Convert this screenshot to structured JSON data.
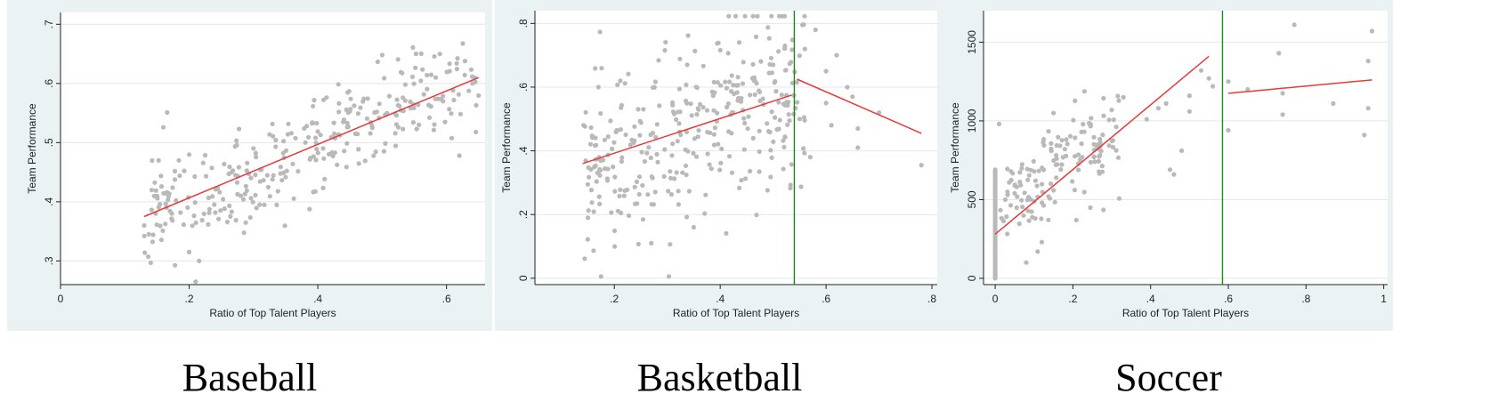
{
  "colors": {
    "panel_bg": "#eaf2f3",
    "plot_bg": "#ffffff",
    "grid": "#e1e8ea",
    "points": "#b9b9b9",
    "fit_line": "#e8393a",
    "threshold_line": "#1a8a1a"
  },
  "chart_data": [
    {
      "type": "scatter",
      "caption": "Baseball",
      "xlabel": "Ratio of Top Talent Players",
      "ylabel": "Team Performance",
      "xlim": [
        0,
        0.66
      ],
      "ylim": [
        0.26,
        0.72
      ],
      "xticks": [
        0,
        0.2,
        0.4,
        0.6
      ],
      "xtick_labels": [
        "0",
        ".2",
        ".4",
        ".6"
      ],
      "yticks": [
        0.3,
        0.4,
        0.5,
        0.6,
        0.7
      ],
      "ytick_labels": [
        ".3",
        ".4",
        ".5",
        ".6",
        ".7"
      ],
      "grid": true,
      "fit_lines": [
        {
          "x": [
            0.13,
            0.65
          ],
          "y": [
            0.375,
            0.61
          ]
        }
      ],
      "vlines": [],
      "points_summary": {
        "count": 320,
        "x_range": [
          0.13,
          0.65
        ],
        "slope": 0.452,
        "intercept": 0.316,
        "spread": 0.045,
        "seed": 11
      },
      "extra_points": [
        [
          0.21,
          0.265
        ],
        [
          0.2,
          0.315
        ],
        [
          0.13,
          0.36
        ],
        [
          0.5,
          0.648
        ],
        [
          0.62,
          0.478
        ]
      ]
    },
    {
      "type": "scatter",
      "caption": "Basketball",
      "xlabel": "Ratio of Top Talent Players",
      "ylabel": "Team Performance",
      "xlim": [
        0.05,
        0.81
      ],
      "ylim": [
        -0.02,
        0.84
      ],
      "xticks": [
        0.2,
        0.4,
        0.6,
        0.8
      ],
      "xtick_labels": [
        ".2",
        ".4",
        ".6",
        ".8"
      ],
      "yticks": [
        0,
        0.2,
        0.4,
        0.6,
        0.8
      ],
      "ytick_labels": [
        "0",
        ".2",
        ".4",
        ".6",
        ".8"
      ],
      "grid": true,
      "fit_lines": [
        {
          "x": [
            0.14,
            0.535
          ],
          "y": [
            0.36,
            0.575
          ]
        },
        {
          "x": [
            0.545,
            0.78
          ],
          "y": [
            0.625,
            0.455
          ]
        }
      ],
      "vlines": [
        0.54
      ],
      "points_summary": {
        "count": 340,
        "x_range": [
          0.14,
          0.56
        ],
        "slope": 0.6,
        "intercept": 0.27,
        "spread": 0.14,
        "seed": 23
      },
      "extra_points": [
        [
          0.27,
          0.11
        ],
        [
          0.35,
          0.16
        ],
        [
          0.78,
          0.355
        ],
        [
          0.66,
          0.41
        ],
        [
          0.6,
          0.65
        ],
        [
          0.64,
          0.6
        ],
        [
          0.58,
          0.78
        ],
        [
          0.7,
          0.52
        ],
        [
          0.66,
          0.47
        ],
        [
          0.56,
          0.72
        ],
        [
          0.62,
          0.7
        ],
        [
          0.6,
          0.55
        ],
        [
          0.57,
          0.38
        ],
        [
          0.55,
          0.5
        ],
        [
          0.65,
          0.57
        ],
        [
          0.61,
          0.48
        ],
        [
          0.15,
          0.19
        ],
        [
          0.17,
          0.6
        ]
      ]
    },
    {
      "type": "scatter",
      "caption": "Soccer",
      "xlabel": "Ratio of Top Talent Players",
      "ylabel": "Team Performance",
      "xlim": [
        -0.03,
        1.01
      ],
      "ylim": [
        -40,
        1700
      ],
      "xticks": [
        0,
        0.2,
        0.4,
        0.6,
        0.8,
        1
      ],
      "xtick_labels": [
        "0",
        ".2",
        ".4",
        ".6",
        ".8",
        "1"
      ],
      "yticks": [
        0,
        500,
        1000,
        1500
      ],
      "ytick_labels": [
        "0",
        "500",
        "1000",
        "1500"
      ],
      "grid": true,
      "fit_lines": [
        {
          "x": [
            0,
            0.55
          ],
          "y": [
            280,
            1410
          ]
        },
        {
          "x": [
            0.6,
            0.97
          ],
          "y": [
            1175,
            1260
          ]
        }
      ],
      "vlines": [
        0.585
      ],
      "points_summary": {
        "count": 150,
        "x_range": [
          0.01,
          0.32
        ],
        "slope": 1500,
        "intercept": 430,
        "spread": 170,
        "seed": 37
      },
      "zero_column": {
        "x": 0,
        "y_range": [
          0,
          690
        ],
        "count": 60
      },
      "extra_points": [
        [
          0.77,
          1610
        ],
        [
          0.97,
          1570
        ],
        [
          0.73,
          1430
        ],
        [
          0.96,
          1380
        ],
        [
          0.74,
          1175
        ],
        [
          0.65,
          1200
        ],
        [
          0.6,
          1250
        ],
        [
          0.6,
          940
        ],
        [
          0.74,
          1040
        ],
        [
          0.96,
          1080
        ],
        [
          0.87,
          1110
        ],
        [
          0.95,
          910
        ],
        [
          0.55,
          1270
        ],
        [
          0.53,
          1320
        ],
        [
          0.56,
          1220
        ],
        [
          0.5,
          1160
        ],
        [
          0.5,
          1060
        ],
        [
          0.44,
          1110
        ],
        [
          0.42,
          1080
        ],
        [
          0.39,
          1010
        ],
        [
          0.45,
          690
        ],
        [
          0.46,
          660
        ],
        [
          0.48,
          810
        ],
        [
          0.33,
          1150
        ],
        [
          0.08,
          100
        ],
        [
          0.12,
          230
        ],
        [
          0.01,
          980
        ],
        [
          0.15,
          1050
        ]
      ]
    }
  ]
}
